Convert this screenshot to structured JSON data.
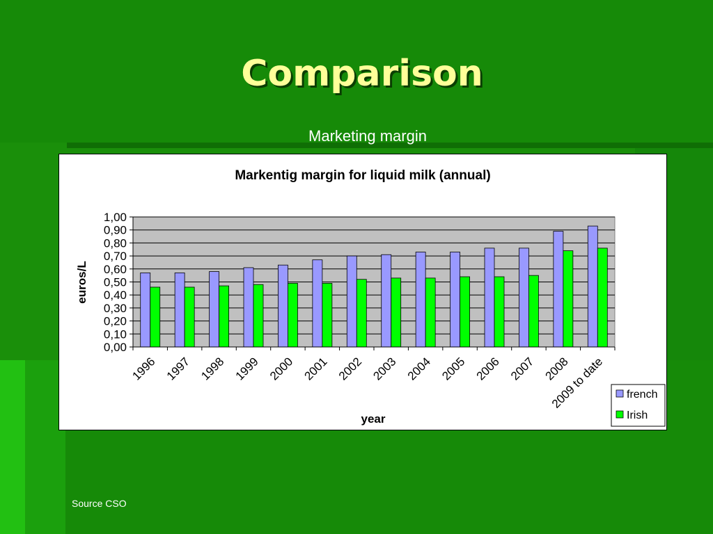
{
  "slide": {
    "title": "Comparison",
    "subtitle": "Marketing margin",
    "source": "Source CSO"
  },
  "chart_data": {
    "type": "bar",
    "title": "Markentig margin for liquid milk (annual)",
    "xlabel": "year",
    "ylabel": "euros/L",
    "ylim": [
      0,
      1.0
    ],
    "y_ticks": [
      "0,00",
      "0,10",
      "0,20",
      "0,30",
      "0,40",
      "0,50",
      "0,60",
      "0,70",
      "0,80",
      "0,90",
      "1,00"
    ],
    "categories": [
      "1996",
      "1997",
      "1998",
      "1999",
      "2000",
      "2001",
      "2002",
      "2003",
      "2004",
      "2005",
      "2006",
      "2007",
      "2008",
      "2009 to date"
    ],
    "series": [
      {
        "name": "french",
        "color": "#9999ff",
        "values": [
          0.57,
          0.57,
          0.58,
          0.61,
          0.63,
          0.67,
          0.7,
          0.71,
          0.73,
          0.73,
          0.76,
          0.76,
          0.89,
          0.93
        ]
      },
      {
        "name": "Irish",
        "color": "#00ff00",
        "values": [
          0.46,
          0.46,
          0.47,
          0.48,
          0.49,
          0.49,
          0.52,
          0.53,
          0.53,
          0.54,
          0.54,
          0.55,
          0.74,
          0.76
        ]
      }
    ],
    "grid": true,
    "plot_background": "#c0c0c0",
    "legend_position": "right"
  }
}
